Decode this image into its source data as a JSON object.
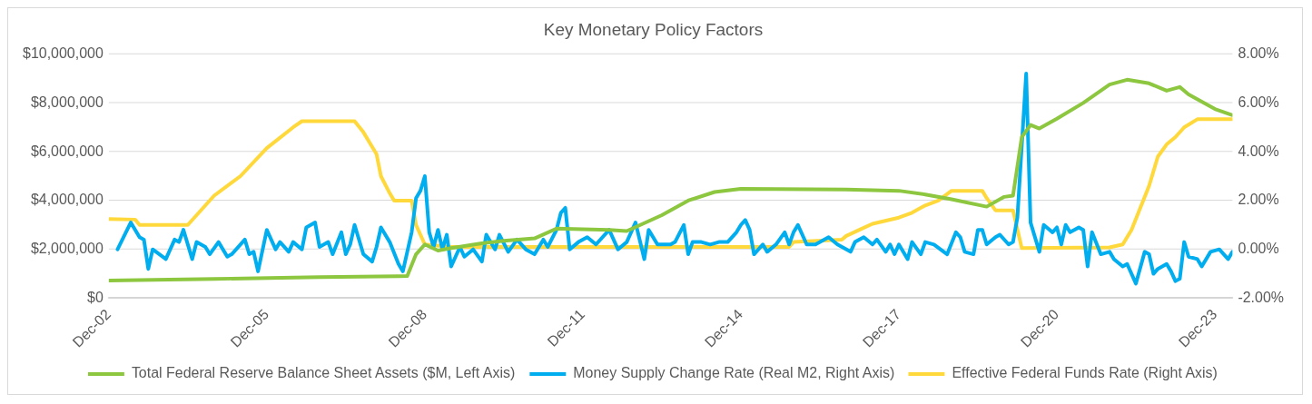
{
  "chart_data": {
    "type": "line",
    "title": "Key Monetary Policy Factors",
    "xlim": [
      "2002-12",
      "2024-04"
    ],
    "xticks": [
      {
        "value": "2002-12",
        "label": "Dec-02"
      },
      {
        "value": "2005-12",
        "label": "Dec-05"
      },
      {
        "value": "2008-12",
        "label": "Dec-08"
      },
      {
        "value": "2011-12",
        "label": "Dec-11"
      },
      {
        "value": "2014-12",
        "label": "Dec-14"
      },
      {
        "value": "2017-12",
        "label": "Dec-17"
      },
      {
        "value": "2020-12",
        "label": "Dec-20"
      },
      {
        "value": "2023-12",
        "label": "Dec-23"
      }
    ],
    "ylim": [
      0,
      10000000
    ],
    "yticks": [
      {
        "value": 0,
        "label": "$0"
      },
      {
        "value": 2000000,
        "label": "$2,000,000"
      },
      {
        "value": 4000000,
        "label": "$4,000,000"
      },
      {
        "value": 6000000,
        "label": "$6,000,000"
      },
      {
        "value": 8000000,
        "label": "$8,000,000"
      },
      {
        "value": 10000000,
        "label": "$10,000,000"
      }
    ],
    "y2lim": [
      -2,
      8
    ],
    "y2ticks": [
      {
        "value": -2,
        "label": "-2.00%"
      },
      {
        "value": 0,
        "label": "0.00%"
      },
      {
        "value": 2,
        "label": "2.00%"
      },
      {
        "value": 4,
        "label": "4.00%"
      },
      {
        "value": 6,
        "label": "6.00%"
      },
      {
        "value": 8,
        "label": "8.00%"
      }
    ],
    "grid": "y",
    "legend": "bottom",
    "marker": "none",
    "line_style": "solid",
    "series": [
      {
        "name": "Total Federal Reserve Balance Sheet Assets ($M, Left Axis)",
        "color": "#8dc63f",
        "x": [
          "2002-12",
          "2004-12",
          "2006-12",
          "2008-06",
          "2008-08",
          "2008-10",
          "2008-12",
          "2009-03",
          "2009-06",
          "2010-01",
          "2010-06",
          "2011-01",
          "2011-06",
          "2012-06",
          "2012-10",
          "2013-06",
          "2013-12",
          "2014-06",
          "2014-12",
          "2016-12",
          "2017-12",
          "2018-06",
          "2018-12",
          "2019-08",
          "2019-12",
          "2020-02",
          "2020-04",
          "2020-06",
          "2020-08",
          "2020-12",
          "2021-06",
          "2021-12",
          "2022-04",
          "2022-09",
          "2023-01",
          "2023-04",
          "2023-06",
          "2023-12",
          "2024-04"
        ],
        "values": [
          720000,
          790000,
          860000,
          900000,
          910000,
          1800000,
          2200000,
          1950000,
          2050000,
          2250000,
          2350000,
          2450000,
          2850000,
          2800000,
          2750000,
          3400000,
          4000000,
          4350000,
          4480000,
          4450000,
          4400000,
          4250000,
          4050000,
          3750000,
          4150000,
          4200000,
          6600000,
          7100000,
          6950000,
          7350000,
          8000000,
          8750000,
          8950000,
          8800000,
          8500000,
          8650000,
          8350000,
          7750000,
          7500000
        ]
      },
      {
        "name": "Money Supply Change Rate (Real M2, Right Axis)",
        "color": "#00aeef",
        "axis": "y2",
        "x": [
          "2003-02",
          "2003-05",
          "2003-07",
          "2003-08",
          "2003-09",
          "2003-10",
          "2004-01",
          "2004-03",
          "2004-04",
          "2004-05",
          "2004-07",
          "2004-08",
          "2004-10",
          "2004-11",
          "2005-01",
          "2005-03",
          "2005-04",
          "2005-07",
          "2005-08",
          "2005-09",
          "2005-10",
          "2005-12",
          "2006-02",
          "2006-03",
          "2006-05",
          "2006-06",
          "2006-08",
          "2006-09",
          "2006-11",
          "2006-12",
          "2007-02",
          "2007-03",
          "2007-05",
          "2007-06",
          "2007-07",
          "2007-08",
          "2007-10",
          "2007-12",
          "2008-01",
          "2008-02",
          "2008-04",
          "2008-06",
          "2008-07",
          "2008-08",
          "2008-09",
          "2008-10",
          "2008-11",
          "2008-12",
          "2009-01",
          "2009-02",
          "2009-03",
          "2009-04",
          "2009-05",
          "2009-06",
          "2009-08",
          "2009-09",
          "2009-11",
          "2010-01",
          "2010-02",
          "2010-04",
          "2010-05",
          "2010-07",
          "2010-09",
          "2010-11",
          "2011-01",
          "2011-03",
          "2011-04",
          "2011-06",
          "2011-07",
          "2011-08",
          "2011-09",
          "2011-11",
          "2012-01",
          "2012-03",
          "2012-06",
          "2012-08",
          "2012-10",
          "2012-12",
          "2013-02",
          "2013-03",
          "2013-05",
          "2013-08",
          "2013-09",
          "2013-11",
          "2013-12",
          "2014-01",
          "2014-03",
          "2014-05",
          "2014-07",
          "2014-09",
          "2014-11",
          "2014-12",
          "2015-01",
          "2015-02",
          "2015-03",
          "2015-05",
          "2015-06",
          "2015-08",
          "2015-10",
          "2015-11",
          "2015-12",
          "2016-01",
          "2016-03",
          "2016-05",
          "2016-08",
          "2016-10",
          "2017-01",
          "2017-02",
          "2017-04",
          "2017-06",
          "2017-07",
          "2017-09",
          "2017-10",
          "2017-11",
          "2017-12",
          "2018-02",
          "2018-03",
          "2018-05",
          "2018-06",
          "2018-08",
          "2018-11",
          "2019-01",
          "2019-02",
          "2019-03",
          "2019-05",
          "2019-06",
          "2019-07",
          "2019-08",
          "2019-10",
          "2019-11",
          "2020-01",
          "2020-02",
          "2020-03",
          "2020-05",
          "2020-06",
          "2020-08",
          "2020-09",
          "2020-11",
          "2020-12",
          "2021-01",
          "2021-02",
          "2021-03",
          "2021-05",
          "2021-06",
          "2021-07",
          "2021-08",
          "2021-10",
          "2021-12",
          "2022-01",
          "2022-03",
          "2022-04",
          "2022-06",
          "2022-08",
          "2022-09",
          "2022-10",
          "2022-11",
          "2023-01",
          "2023-02",
          "2023-03",
          "2023-04",
          "2023-05",
          "2023-06",
          "2023-08",
          "2023-09",
          "2023-11",
          "2024-01",
          "2024-03",
          "2024-04"
        ],
        "values": [
          0.0,
          1.1,
          0.5,
          0.4,
          -0.8,
          0.0,
          -0.4,
          0.4,
          0.3,
          0.8,
          -0.4,
          0.3,
          0.1,
          -0.2,
          0.3,
          -0.3,
          -0.2,
          0.4,
          -0.2,
          -0.1,
          -0.9,
          0.8,
          0.0,
          0.3,
          -0.1,
          0.3,
          0.0,
          0.9,
          1.1,
          0.1,
          0.3,
          -0.2,
          0.7,
          -0.2,
          0.2,
          1.0,
          -0.2,
          -0.5,
          0.1,
          0.9,
          0.3,
          -0.6,
          -0.9,
          -0.1,
          0.7,
          2.1,
          2.4,
          3.0,
          0.7,
          0.1,
          0.8,
          0.0,
          0.6,
          -0.7,
          0.1,
          -0.3,
          0.0,
          -0.5,
          0.6,
          0.0,
          0.6,
          -0.1,
          0.4,
          0.0,
          -0.2,
          0.4,
          0.1,
          0.8,
          1.5,
          1.7,
          0.0,
          0.3,
          0.5,
          0.2,
          0.8,
          0.0,
          0.3,
          1.1,
          -0.4,
          0.8,
          0.2,
          0.2,
          0.3,
          1.0,
          -0.2,
          0.3,
          0.3,
          0.2,
          0.3,
          0.3,
          0.7,
          1.0,
          1.2,
          0.8,
          -0.2,
          0.2,
          -0.1,
          0.2,
          0.7,
          0.2,
          0.7,
          1.0,
          0.2,
          0.2,
          0.5,
          0.2,
          -0.1,
          0.3,
          0.5,
          0.2,
          0.4,
          -0.1,
          0.2,
          -0.2,
          0.2,
          -0.4,
          0.3,
          -0.2,
          0.3,
          0.2,
          -0.2,
          0.7,
          0.5,
          -0.1,
          -0.2,
          0.8,
          0.8,
          0.2,
          0.5,
          0.6,
          0.2,
          0.3,
          1.3,
          7.2,
          1.1,
          -0.1,
          1.0,
          0.7,
          0.9,
          0.2,
          1.0,
          0.7,
          0.9,
          0.8,
          -0.7,
          0.7,
          -0.2,
          -0.1,
          -0.4,
          -0.7,
          -0.6,
          -1.4,
          -0.1,
          -0.2,
          -1.0,
          -0.8,
          -0.6,
          -0.9,
          -1.3,
          -1.2,
          0.3,
          -0.3,
          -0.4,
          -0.7,
          -0.1,
          0.0,
          -0.4,
          -0.1
        ]
      },
      {
        "name": "Effective Federal Funds Rate (Right Axis)",
        "color": "#ffd93b",
        "axis": "y2",
        "x": [
          "2002-12",
          "2003-06",
          "2003-07",
          "2004-06",
          "2004-12",
          "2005-06",
          "2005-12",
          "2006-06",
          "2006-08",
          "2007-08",
          "2007-10",
          "2007-12",
          "2008-01",
          "2008-02",
          "2008-04",
          "2008-05",
          "2008-09",
          "2008-10",
          "2008-12",
          "2009-06",
          "2015-11",
          "2015-12",
          "2016-11",
          "2016-12",
          "2017-03",
          "2017-06",
          "2017-12",
          "2018-03",
          "2018-06",
          "2018-09",
          "2018-12",
          "2019-07",
          "2019-08",
          "2019-10",
          "2020-02",
          "2020-04",
          "2021-12",
          "2022-03",
          "2022-05",
          "2022-07",
          "2022-09",
          "2022-11",
          "2023-01",
          "2023-03",
          "2023-05",
          "2023-08",
          "2024-04"
        ],
        "values": [
          1.24,
          1.22,
          1.0,
          1.0,
          2.2,
          3.0,
          4.15,
          5.0,
          5.25,
          5.25,
          4.8,
          4.2,
          3.9,
          3.0,
          2.3,
          2.0,
          2.0,
          1.0,
          0.2,
          0.1,
          0.1,
          0.3,
          0.4,
          0.55,
          0.8,
          1.05,
          1.3,
          1.5,
          1.8,
          2.0,
          2.4,
          2.4,
          2.1,
          1.6,
          1.6,
          0.05,
          0.08,
          0.2,
          0.8,
          1.7,
          2.6,
          3.8,
          4.3,
          4.6,
          5.0,
          5.33,
          5.33
        ]
      }
    ]
  }
}
